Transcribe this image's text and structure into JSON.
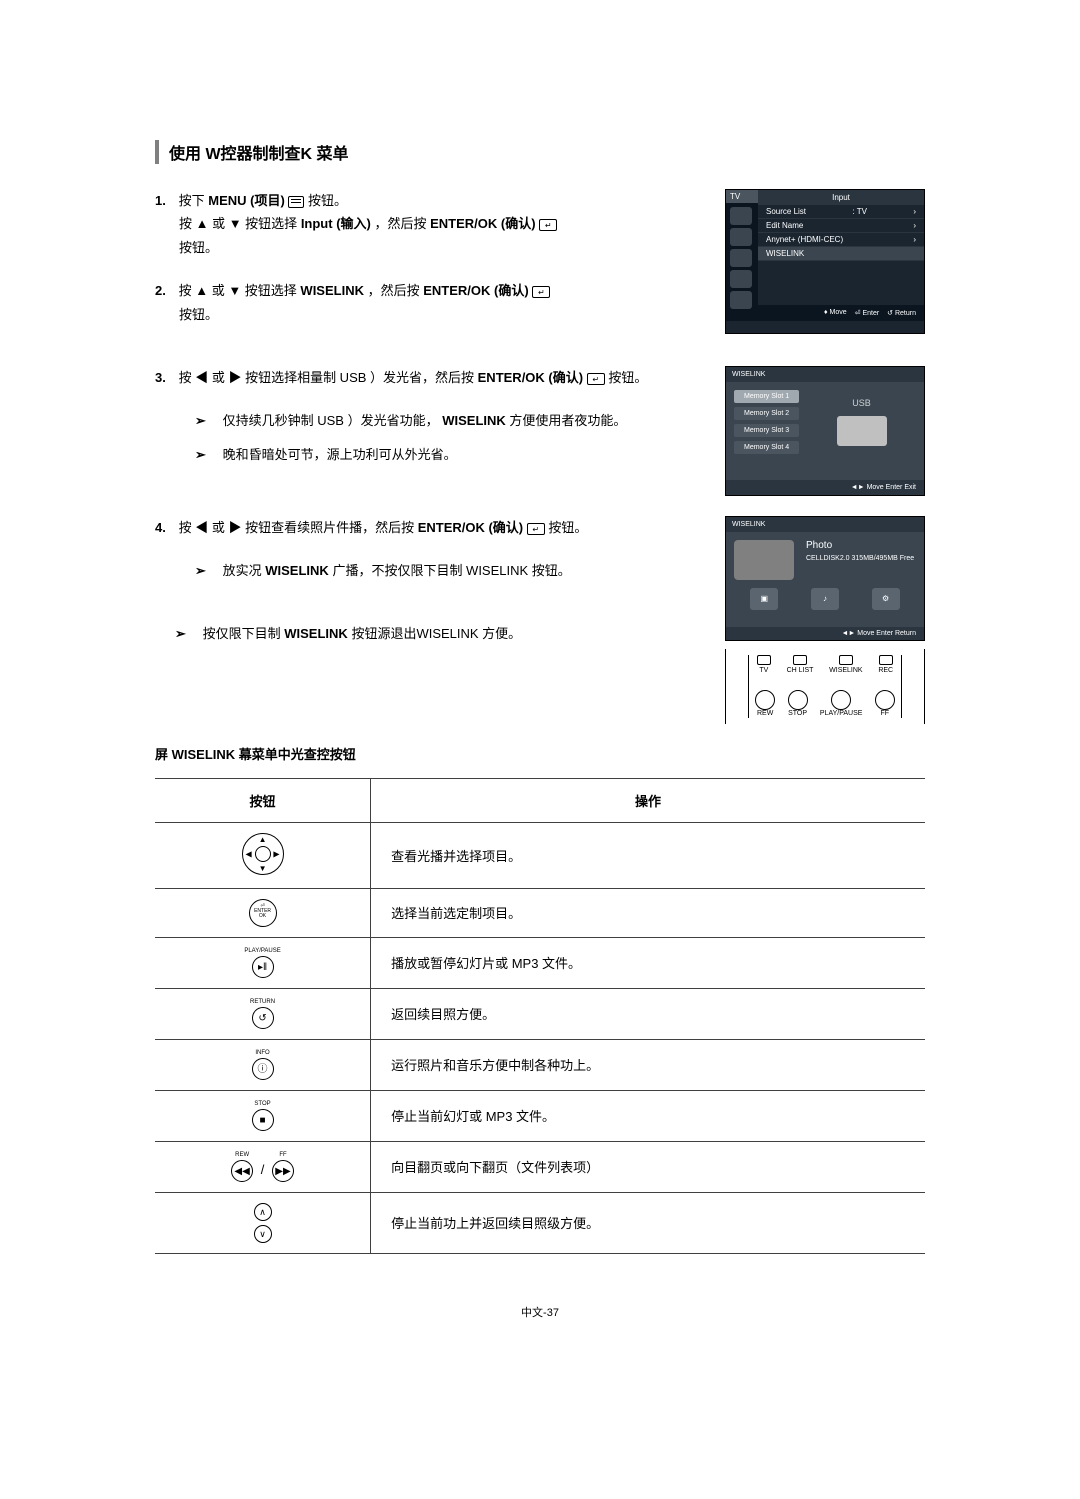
{
  "header": {
    "title": "使用 W控器制制查K 菜单"
  },
  "steps": {
    "s1": {
      "num": "1.",
      "line1_pre": "按下 ",
      "line1_bold": "MENU (项目)",
      "line1_post": " 按钮。",
      "line2_pre": "按 ▲ 或 ▼ 按钮选择",
      "line2_bold": "Input (输入)",
      "line2_mid": "，然后按 ",
      "line2_bold2": "ENTER/OK (确认)",
      "line2_post": "按钮。"
    },
    "s2": {
      "num": "2.",
      "line1_pre": "按 ▲ 或 ▼ 按钮选择 ",
      "line1_bold": "WISELINK",
      "line1_mid": "，然后按",
      "line1_bold2": "ENTER/OK (确认)",
      "line1_post": "按钮。"
    },
    "s3": {
      "num": "3.",
      "line1_pre": "按 ◀ 或 ▶ 按钮选择相量制 USB ）发光省，然后按 ",
      "line1_bold": "ENTER/OK (确认)",
      "line1_post": " 按钮。",
      "note1_pre": "仅持续几秒钟制 USB ）发光省功能，",
      "note1_bold": "WISELINK",
      "note1_post": " 方便使用者夜功能。",
      "note2": "晚和昏暗处可节，源上功利可从外光省。"
    },
    "s4": {
      "num": "4.",
      "line1_pre": "按 ◀ 或 ▶ 按钮查看续照片件播，然后按 ",
      "line1_bold": "ENTER/OK (确认)",
      "line1_post": " 按钮。",
      "note1_pre": "放实况 ",
      "note1_bold": "WISELINK",
      "note1_post": " 广播，不按仅限下目制 WISELINK 按钮。"
    },
    "exit_note_pre": "按仅限下目制 ",
    "exit_note_bold": "WISELINK",
    "exit_note_post": " 按钮源退出WISELINK 方便。"
  },
  "tv_menu": {
    "tv_label": "TV",
    "title": "Input",
    "item1_label": "Source List",
    "item1_val": ": TV",
    "item2": "Edit Name",
    "item3": "Anynet+ (HDMI-CEC)",
    "item4": "WISELINK",
    "footer_move": "Move",
    "footer_enter": "Enter",
    "footer_return": "Return"
  },
  "usb_menu": {
    "header": "WISELINK",
    "slot1": "Memory Slot 1",
    "slot2": "Memory Slot 2",
    "slot3": "Memory Slot 3",
    "slot4": "Memory Slot 4",
    "label": "USB",
    "footer": "Move Enter Exit"
  },
  "photo_menu": {
    "header": "WISELINK",
    "title": "Photo",
    "sub": "CELLDISK2.0\n315MB/495MB Free",
    "icon1": "Photo",
    "icon2": "Music",
    "icon3": "Setup",
    "footer": "Move Enter Return"
  },
  "remote": {
    "tv": "TV",
    "chlist": "CH LIST",
    "wiselink": "WISELINK",
    "rec": "REC",
    "rew": "REW",
    "stop": "STOP",
    "play": "PLAY/PAUSE",
    "ff": "FF"
  },
  "table": {
    "title": "屏 WISELINK 幕菜单中光查控按钮",
    "col1": "按钮",
    "col2": "操作",
    "row1": "查看光播并选择项目。",
    "row2_label": "ENTER\nOK",
    "row2": "选择当前选定制项目。",
    "row3_label": "PLAY/PAUSE",
    "row3": "播放或暂停幻灯片或 MP3 文件。",
    "row4_label": "RETURN",
    "row4": "返回续目照方便。",
    "row5_label": "INFO",
    "row5": "运行照片和音乐方便中制各种功上。",
    "row6_label": "STOP",
    "row6": "停止当前幻灯或 MP3 文件。",
    "row7_label1": "REW",
    "row7_label2": "FF",
    "row7": "向目翻页或向下翻页（文件列表项）",
    "row8": "停止当前功上并返回续目照级方便。"
  },
  "page": "中文-37"
}
